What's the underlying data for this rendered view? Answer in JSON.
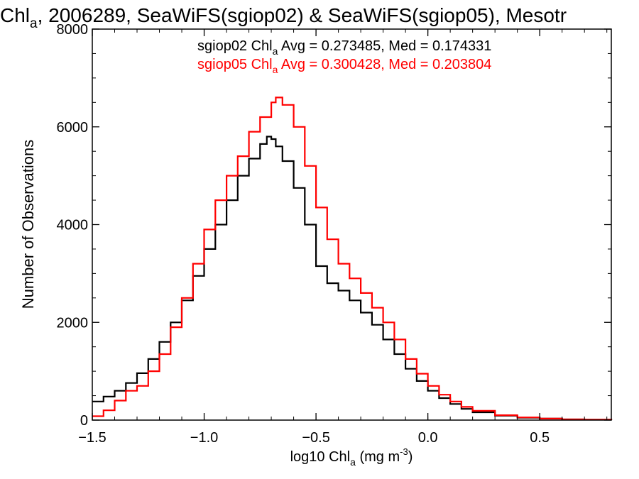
{
  "chart_data": {
    "type": "line",
    "title": {
      "part1": "Chl",
      "part1_sub": "a",
      "part2": ", 2006289, SeaWiFS(sgiop02) & SeaWiFS(sgiop05), Mesotr"
    },
    "xlabel": {
      "main": "log10 Chl",
      "sub": "a",
      "units": " (mg m",
      "sup": "-3",
      "close": ")"
    },
    "ylabel": "Number of Observations",
    "xlim": [
      -1.5,
      0.82
    ],
    "ylim": [
      0,
      8000
    ],
    "x_ticks": [
      -1.5,
      -1.0,
      -0.5,
      0.0,
      0.5
    ],
    "x_tick_labels": [
      "−1.5",
      "−1.0",
      "−0.5",
      "0.0",
      "0.5"
    ],
    "y_ticks": [
      0,
      2000,
      4000,
      6000,
      8000
    ],
    "y_tick_labels": [
      "0",
      "2000",
      "4000",
      "6000",
      "8000"
    ],
    "grid": false,
    "series": [
      {
        "name": "sgiop02",
        "color": "#000000",
        "legend": {
          "pre": "sgiop02 Chl",
          "sub": "a",
          "post": " Avg = 0.273485, Med = 0.174331"
        },
        "x": [
          -1.5,
          -1.45,
          -1.4,
          -1.35,
          -1.3,
          -1.25,
          -1.2,
          -1.15,
          -1.1,
          -1.05,
          -1.0,
          -0.95,
          -0.9,
          -0.85,
          -0.8,
          -0.75,
          -0.72,
          -0.7,
          -0.68,
          -0.65,
          -0.6,
          -0.55,
          -0.5,
          -0.45,
          -0.4,
          -0.35,
          -0.3,
          -0.25,
          -0.2,
          -0.15,
          -0.1,
          -0.05,
          0.0,
          0.05,
          0.1,
          0.15,
          0.2,
          0.3,
          0.4,
          0.5,
          0.6,
          0.7,
          0.82
        ],
        "y": [
          380,
          480,
          600,
          760,
          960,
          1250,
          1600,
          2000,
          2450,
          2950,
          3500,
          4000,
          4500,
          5000,
          5350,
          5650,
          5800,
          5750,
          5600,
          5300,
          4750,
          4000,
          3150,
          2800,
          2650,
          2450,
          2200,
          1950,
          1650,
          1350,
          1050,
          800,
          600,
          450,
          330,
          230,
          160,
          90,
          50,
          30,
          15,
          8,
          0
        ]
      },
      {
        "name": "sgiop05",
        "color": "#ff0000",
        "legend": {
          "pre": "sgiop05 Chl",
          "sub": "a",
          "post": " Avg = 0.300428, Med = 0.203804"
        },
        "x": [
          -1.5,
          -1.45,
          -1.4,
          -1.35,
          -1.3,
          -1.25,
          -1.2,
          -1.15,
          -1.1,
          -1.05,
          -1.0,
          -0.95,
          -0.9,
          -0.85,
          -0.8,
          -0.75,
          -0.7,
          -0.68,
          -0.65,
          -0.6,
          -0.55,
          -0.5,
          -0.45,
          -0.4,
          -0.35,
          -0.3,
          -0.25,
          -0.2,
          -0.15,
          -0.1,
          -0.05,
          0.0,
          0.05,
          0.1,
          0.15,
          0.2,
          0.3,
          0.4,
          0.5,
          0.6,
          0.7,
          0.82
        ],
        "y": [
          80,
          200,
          400,
          600,
          700,
          1000,
          1350,
          1900,
          2500,
          3200,
          3900,
          4500,
          5000,
          5400,
          5900,
          6200,
          6500,
          6600,
          6450,
          6000,
          5200,
          4350,
          3700,
          3200,
          2900,
          2600,
          2300,
          2000,
          1650,
          1250,
          950,
          700,
          520,
          380,
          270,
          190,
          100,
          55,
          30,
          15,
          8,
          0
        ]
      }
    ]
  }
}
